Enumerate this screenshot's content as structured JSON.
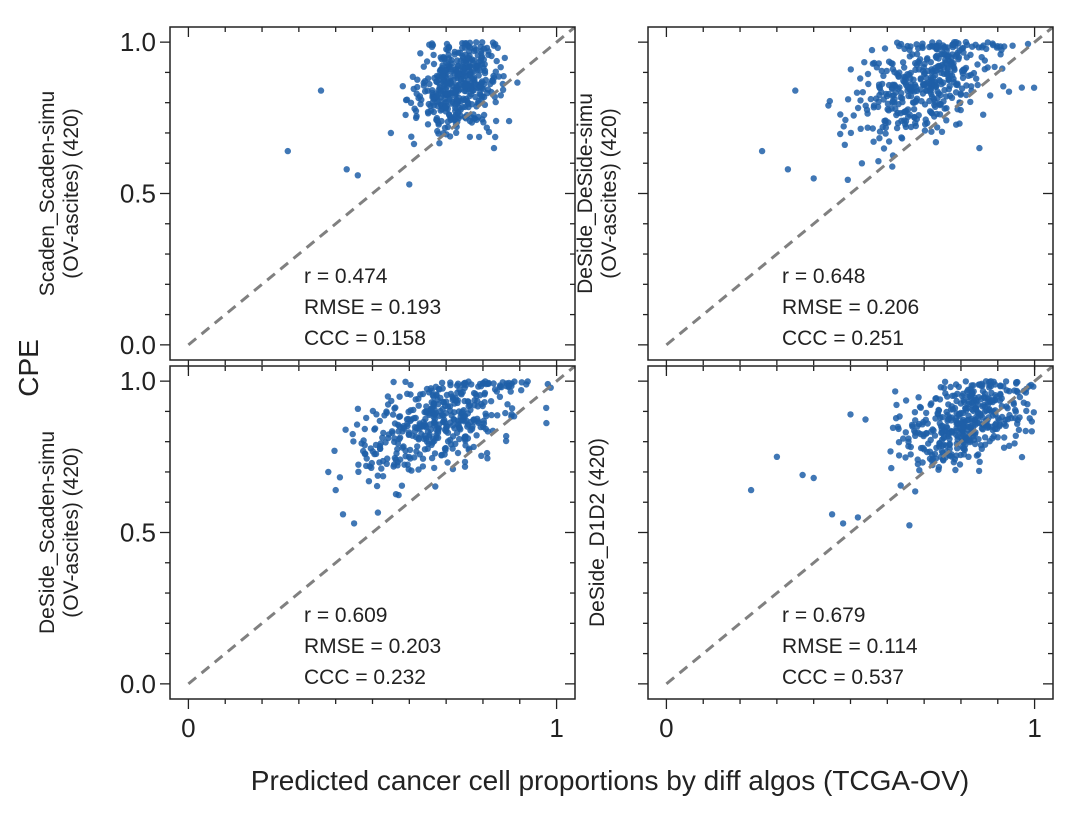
{
  "figure": {
    "ylabel": "CPE",
    "xlabel": "Predicted cancer cell proportions by diff algos (TCGA-OV)"
  },
  "chart_data": [
    {
      "type": "scatter",
      "ylabel_lines": [
        "Scaden_Scaden-simu",
        "(OV-ascites) (420)"
      ],
      "stats": [
        "r = 0.474",
        "RMSE = 0.193",
        "CCC = 0.158"
      ],
      "n": 420,
      "r": 0.474,
      "rmse": 0.193,
      "ccc": 0.158,
      "xlim": [
        -0.05,
        1.05
      ],
      "ylim": [
        -0.05,
        1.05
      ],
      "xticks": [
        0,
        1
      ],
      "xtick_labels": [
        "0",
        "1"
      ],
      "yticks": [
        0,
        0.5,
        1
      ],
      "ytick_labels": [
        "0.0",
        "0.5",
        "1.0"
      ],
      "show_xticklabels": false,
      "show_yticklabels": true,
      "reference_line": "y = x",
      "point_color": "#1f5fa8",
      "cluster": {
        "x_mean": 0.73,
        "x_sd": 0.06,
        "y_mean": 0.86,
        "y_sd": 0.08
      },
      "outliers": [
        [
          0.27,
          0.64
        ],
        [
          0.36,
          0.84
        ],
        [
          0.43,
          0.58
        ],
        [
          0.46,
          0.56
        ],
        [
          0.6,
          0.53
        ],
        [
          0.83,
          0.65
        ],
        [
          0.55,
          0.7
        ]
      ]
    },
    {
      "type": "scatter",
      "ylabel_lines": [
        "DeSide_DeSide-simu",
        "(OV-ascites) (420)"
      ],
      "stats": [
        "r = 0.648",
        "RMSE = 0.206",
        "CCC = 0.251"
      ],
      "n": 420,
      "r": 0.648,
      "rmse": 0.206,
      "ccc": 0.251,
      "xlim": [
        -0.05,
        1.05
      ],
      "ylim": [
        -0.05,
        1.05
      ],
      "xticks": [
        0,
        1
      ],
      "xtick_labels": [
        "0",
        "1"
      ],
      "yticks": [
        0,
        0.5,
        1
      ],
      "ytick_labels": [
        "0.0",
        "0.5",
        "1.0"
      ],
      "show_xticklabels": false,
      "show_yticklabels": false,
      "reference_line": "y = x",
      "point_color": "#1f5fa8",
      "cluster": {
        "x_mean": 0.7,
        "x_sd": 0.1,
        "y_mean": 0.86,
        "y_sd": 0.08
      },
      "outliers": [
        [
          0.26,
          0.64
        ],
        [
          0.35,
          0.84
        ],
        [
          0.33,
          0.58
        ],
        [
          0.4,
          0.55
        ],
        [
          0.85,
          0.65
        ]
      ]
    },
    {
      "type": "scatter",
      "ylabel_lines": [
        "DeSide_Scaden-simu",
        "(OV-ascites) (420)"
      ],
      "stats": [
        "r = 0.609",
        "RMSE = 0.203",
        "CCC = 0.232"
      ],
      "n": 420,
      "r": 0.609,
      "rmse": 0.203,
      "ccc": 0.232,
      "xlim": [
        -0.05,
        1.05
      ],
      "ylim": [
        -0.05,
        1.05
      ],
      "xticks": [
        0,
        1
      ],
      "xtick_labels": [
        "0",
        "1"
      ],
      "yticks": [
        0,
        0.5,
        1
      ],
      "ytick_labels": [
        "0.0",
        "0.5",
        "1.0"
      ],
      "show_xticklabels": true,
      "show_yticklabels": true,
      "reference_line": "y = x",
      "point_color": "#1f5fa8",
      "cluster": {
        "x_mean": 0.68,
        "x_sd": 0.11,
        "y_mean": 0.86,
        "y_sd": 0.08
      },
      "outliers": [
        [
          0.38,
          0.7
        ],
        [
          0.4,
          0.64
        ],
        [
          0.42,
          0.56
        ],
        [
          0.45,
          0.53
        ],
        [
          0.85,
          0.98
        ]
      ]
    },
    {
      "type": "scatter",
      "ylabel_lines": [
        "DeSide_D1D2 (420)"
      ],
      "stats": [
        "r = 0.679",
        "RMSE = 0.114",
        "CCC = 0.537"
      ],
      "n": 420,
      "r": 0.679,
      "rmse": 0.114,
      "ccc": 0.537,
      "xlim": [
        -0.05,
        1.05
      ],
      "ylim": [
        -0.05,
        1.05
      ],
      "xticks": [
        0,
        1
      ],
      "xtick_labels": [
        "0",
        "1"
      ],
      "yticks": [
        0,
        0.5,
        1
      ],
      "ytick_labels": [
        "0.0",
        "0.5",
        "1.0"
      ],
      "show_xticklabels": true,
      "show_yticklabels": false,
      "reference_line": "y = x",
      "point_color": "#1f5fa8",
      "cluster": {
        "x_mean": 0.82,
        "x_sd": 0.09,
        "y_mean": 0.87,
        "y_sd": 0.08
      },
      "outliers": [
        [
          0.23,
          0.64
        ],
        [
          0.3,
          0.75
        ],
        [
          0.37,
          0.69
        ],
        [
          0.4,
          0.68
        ],
        [
          0.45,
          0.56
        ],
        [
          0.48,
          0.53
        ],
        [
          0.52,
          0.55
        ],
        [
          0.5,
          0.89
        ]
      ]
    }
  ]
}
